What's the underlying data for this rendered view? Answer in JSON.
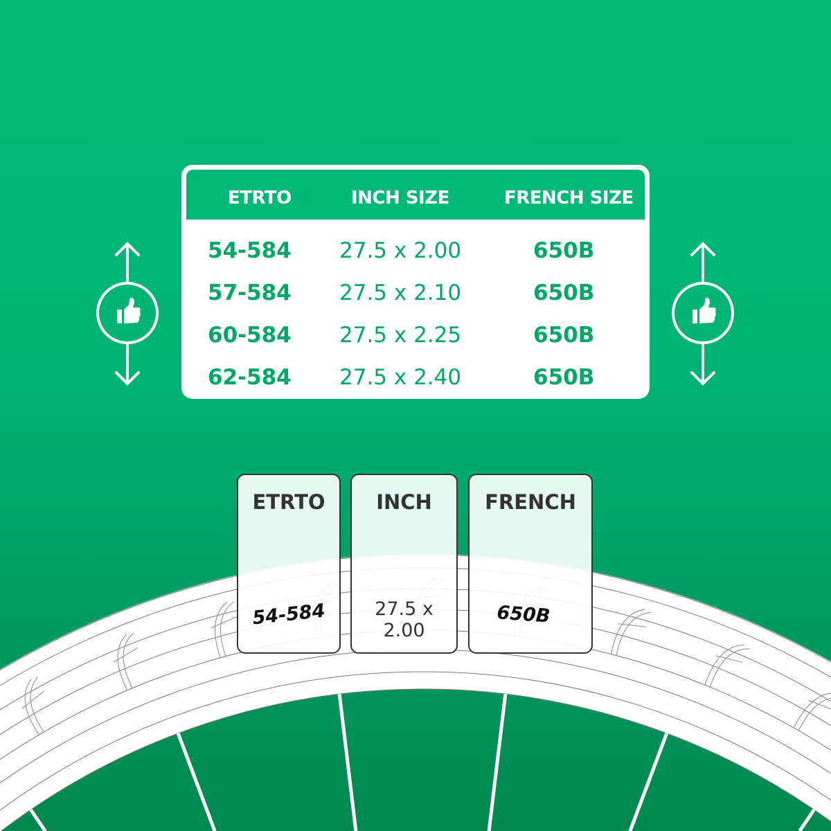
{
  "colors": {
    "background_top": "#00ba78",
    "background_bottom": "#00884f",
    "table_header": "#00b877",
    "table_text": "#00a868",
    "card_border": "#333333"
  },
  "table": {
    "headers": [
      "ETRTO",
      "INCH SIZE",
      "FRENCH SIZE"
    ],
    "rows": [
      {
        "etrto": "54-584",
        "inch": "27.5 x 2.00",
        "french": "650B"
      },
      {
        "etrto": "57-584",
        "inch": "27.5 x 2.10",
        "french": "650B"
      },
      {
        "etrto": "60-584",
        "inch": "27.5 x 2.25",
        "french": "650B"
      },
      {
        "etrto": "62-584",
        "inch": "27.5 x 2.40",
        "french": "650B"
      }
    ]
  },
  "side_icons": {
    "left": "thumbs-up-icon",
    "right": "thumbs-up-icon",
    "arrows": "up-down-arrow-icon"
  },
  "tire_cards": [
    {
      "title": "ETRTO",
      "value": "54-584"
    },
    {
      "title": "INCH",
      "value": "27.5 x 2.00"
    },
    {
      "title": "FRENCH",
      "value": "650B"
    }
  ]
}
